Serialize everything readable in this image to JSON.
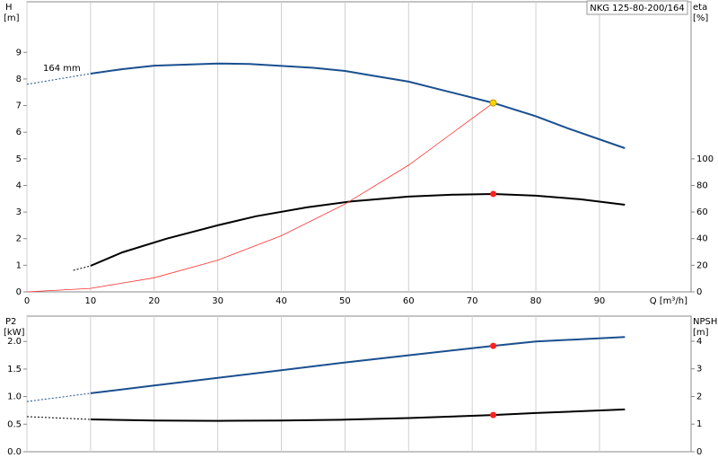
{
  "chart_data": [
    {
      "type": "line",
      "title": "NKG 125-80-200/164",
      "annotation": "164 mm",
      "y_label": "H",
      "y_unit": "[m]",
      "y2_label": "eta",
      "y2_unit": "[%]",
      "x_label": "Q [m³/h]",
      "xlim": [
        0,
        104.4
      ],
      "xticks": [
        0,
        10,
        20,
        30,
        40,
        50,
        60,
        70,
        80,
        90
      ],
      "ylim": [
        0,
        10.9
      ],
      "yticks": [
        0,
        1,
        2,
        3,
        4,
        5,
        6,
        7,
        8,
        9
      ],
      "y2lim": [
        0,
        218
      ],
      "y2ticks": [
        0,
        20,
        40,
        60,
        80,
        100
      ],
      "grid": true,
      "series": [
        {
          "color": "#1a4f8f",
          "dash": true,
          "width": 1,
          "x": [
            0,
            10
          ],
          "values": [
            7.8,
            8.2
          ]
        },
        {
          "color": "#1a4f8f",
          "dash": false,
          "width": 2,
          "x": [
            10,
            15,
            20,
            30,
            35,
            45,
            50,
            55,
            60,
            65,
            73.3,
            80,
            85,
            94
          ],
          "values": [
            8.2,
            8.37,
            8.5,
            8.58,
            8.56,
            8.42,
            8.3,
            8.1,
            7.9,
            7.6,
            7.1,
            6.6,
            6.15,
            5.4
          ]
        },
        {
          "color": "#000000",
          "dash": true,
          "width": 1,
          "axis": "y2",
          "x": [
            7.3,
            10
          ],
          "values": [
            16.2,
            19.6
          ]
        },
        {
          "color": "#000000",
          "dash": false,
          "width": 2,
          "axis": "y2",
          "x": [
            10,
            15,
            22,
            30,
            36,
            44,
            51,
            60,
            67,
            73.3,
            80,
            87,
            94
          ],
          "values": [
            19.6,
            29.7,
            40,
            50,
            56.8,
            63.5,
            68,
            71.6,
            73,
            73.6,
            72.3,
            69.6,
            65.5
          ]
        },
        {
          "color": "#ff3030",
          "dash": false,
          "width": 0.8,
          "x": [
            0,
            10,
            20,
            30,
            40,
            50,
            60,
            73.3
          ],
          "values": [
            0,
            0.13,
            0.53,
            1.19,
            2.11,
            3.3,
            4.76,
            7.1
          ]
        },
        {
          "color": "#ff2020",
          "marker": true,
          "axis": "y2",
          "x": [
            73.3
          ],
          "values": [
            73.6
          ]
        },
        {
          "color": "#ffd700",
          "marker": true,
          "x": [
            73.3
          ],
          "values": [
            7.1
          ]
        }
      ]
    },
    {
      "type": "line",
      "y_label": "P2",
      "y_unit": "[kW]",
      "y2_label": "NPSH",
      "y2_unit": "[m]",
      "xlim": [
        0,
        104.4
      ],
      "ylim": [
        0,
        2.46
      ],
      "yticks": [
        {
          "value": 0,
          "label": "0.0"
        },
        {
          "value": 0.5,
          "label": "0.5"
        },
        {
          "value": 1,
          "label": "1.0"
        },
        {
          "value": 1.5,
          "label": "1.5"
        },
        {
          "value": 2,
          "label": "2.0"
        }
      ],
      "y2lim": [
        0,
        4.91
      ],
      "y2ticks": [
        0,
        1,
        2,
        3,
        4
      ],
      "grid": true,
      "series": [
        {
          "color": "#1a4f8f",
          "dash": true,
          "width": 1,
          "x": [
            0,
            10
          ],
          "values": [
            0.91,
            1.06
          ]
        },
        {
          "color": "#1a4f8f",
          "dash": false,
          "width": 2,
          "x": [
            10,
            20,
            30,
            40,
            50,
            60,
            73.3,
            80,
            94
          ],
          "values": [
            1.06,
            1.2,
            1.34,
            1.48,
            1.62,
            1.75,
            1.92,
            2.0,
            2.08
          ]
        },
        {
          "color": "#000000",
          "dash": true,
          "width": 1,
          "axis": "y2",
          "x": [
            0,
            10
          ],
          "values": [
            1.27,
            1.17
          ]
        },
        {
          "color": "#000000",
          "dash": false,
          "width": 2,
          "axis": "y2",
          "x": [
            10,
            20,
            30,
            40,
            50,
            60,
            73.3,
            80,
            94
          ],
          "values": [
            1.17,
            1.13,
            1.12,
            1.13,
            1.16,
            1.22,
            1.33,
            1.4,
            1.53
          ]
        },
        {
          "color": "#ff2020",
          "marker": true,
          "x": [
            73.3
          ],
          "values": [
            1.92
          ]
        },
        {
          "color": "#ff2020",
          "marker": true,
          "axis": "y2",
          "x": [
            73.3
          ],
          "values": [
            1.33
          ]
        }
      ]
    }
  ]
}
